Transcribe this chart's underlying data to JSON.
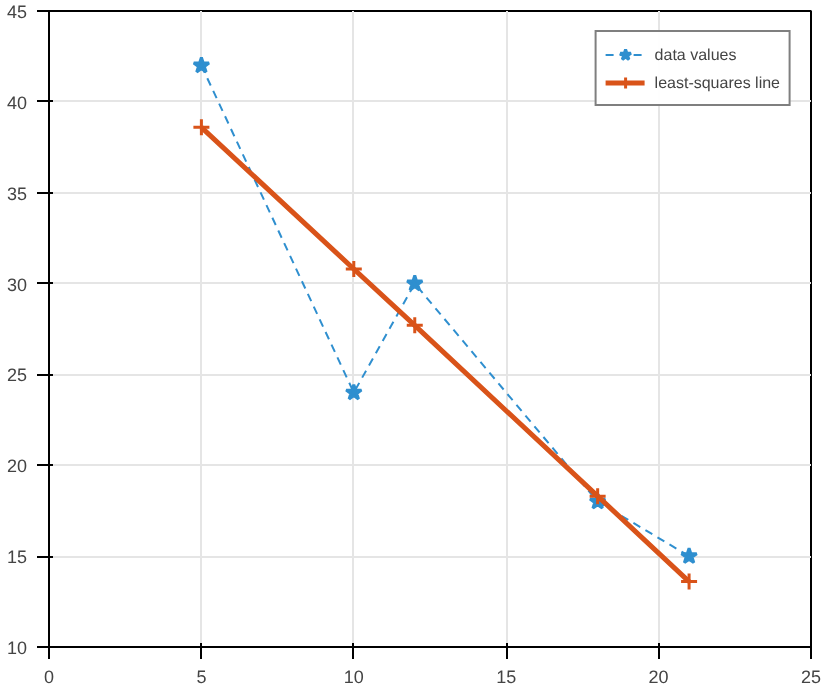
{
  "chart_data": {
    "type": "line",
    "x": [
      5,
      10,
      12,
      18,
      21
    ],
    "series": [
      {
        "name": "data values",
        "color": "#2f8fcf",
        "values": [
          42,
          24,
          30,
          18,
          15
        ],
        "marker": "star",
        "line_style": "dashed"
      },
      {
        "name": "least-squares line",
        "color": "#d95319",
        "values": [
          38.6,
          30.8,
          27.7,
          18.3,
          13.6
        ],
        "marker": "cross",
        "line_style": "solid"
      }
    ],
    "xlim": [
      0,
      25
    ],
    "xticks": [
      0,
      5,
      10,
      15,
      20,
      25
    ],
    "ylim": [
      10,
      45
    ],
    "yticks": [
      10,
      15,
      20,
      25,
      30,
      35,
      40,
      45
    ],
    "grid": true,
    "legend": "top right"
  }
}
